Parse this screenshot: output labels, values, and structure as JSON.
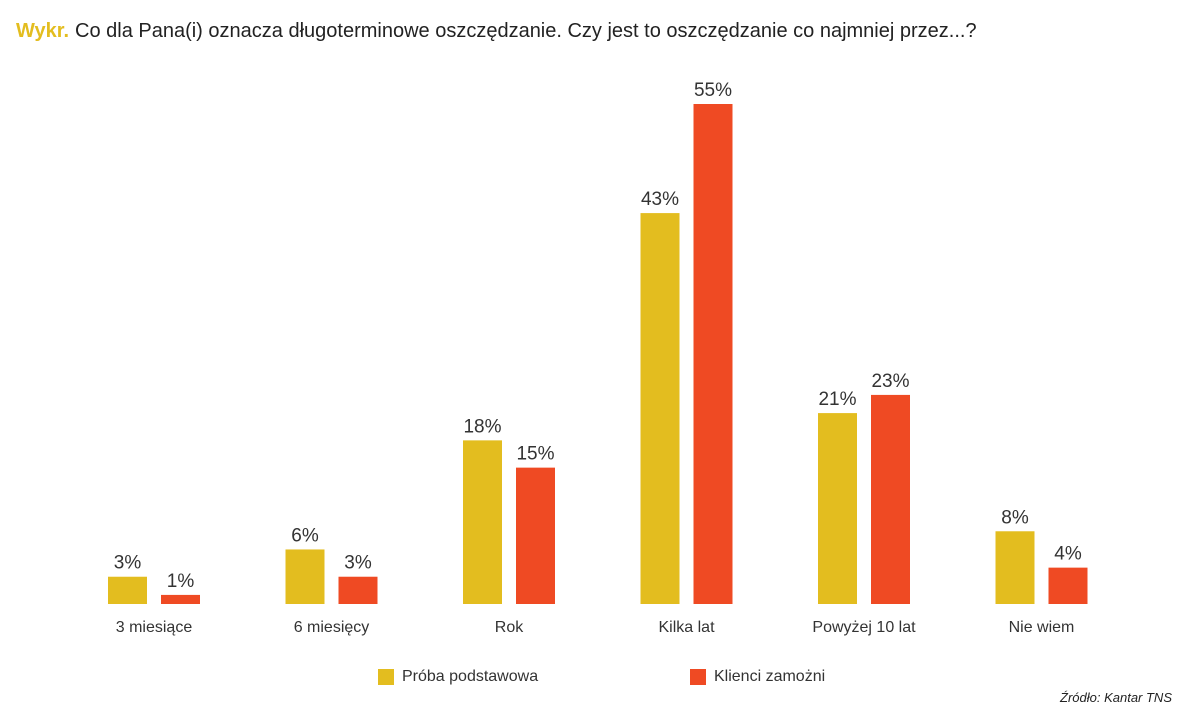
{
  "title": {
    "prefix": "Wykr.",
    "text": "Co dla Pana(i) oznacza długoterminowe oszczędzanie. Czy jest to oszczędzanie co najmniej przez...?"
  },
  "chart_data": {
    "type": "bar",
    "title": "Co dla Pana(i) oznacza długoterminowe oszczędzanie. Czy jest to oszczędzanie co najmniej przez...?",
    "xlabel": "",
    "ylabel": "",
    "ylim": [
      0,
      55
    ],
    "grid": false,
    "legend_position": "bottom",
    "value_suffix": "%",
    "categories": [
      "3 miesiące",
      "6 miesięcy",
      "Rok",
      "Kilka lat",
      "Powyżej 10 lat",
      "Nie wiem"
    ],
    "series": [
      {
        "name": "Próba podstawowa",
        "color": "#e3bd1f",
        "values": [
          3,
          6,
          18,
          43,
          21,
          8
        ]
      },
      {
        "name": "Klienci zamożni",
        "color": "#ef4a23",
        "values": [
          1,
          3,
          15,
          55,
          23,
          4
        ]
      }
    ]
  },
  "legend": {
    "items": [
      {
        "label": "Próba podstawowa",
        "color": "#e3bd1f"
      },
      {
        "label": "Klienci zamożni",
        "color": "#ef4a23"
      }
    ]
  },
  "source": "Źródło: Kantar TNS"
}
